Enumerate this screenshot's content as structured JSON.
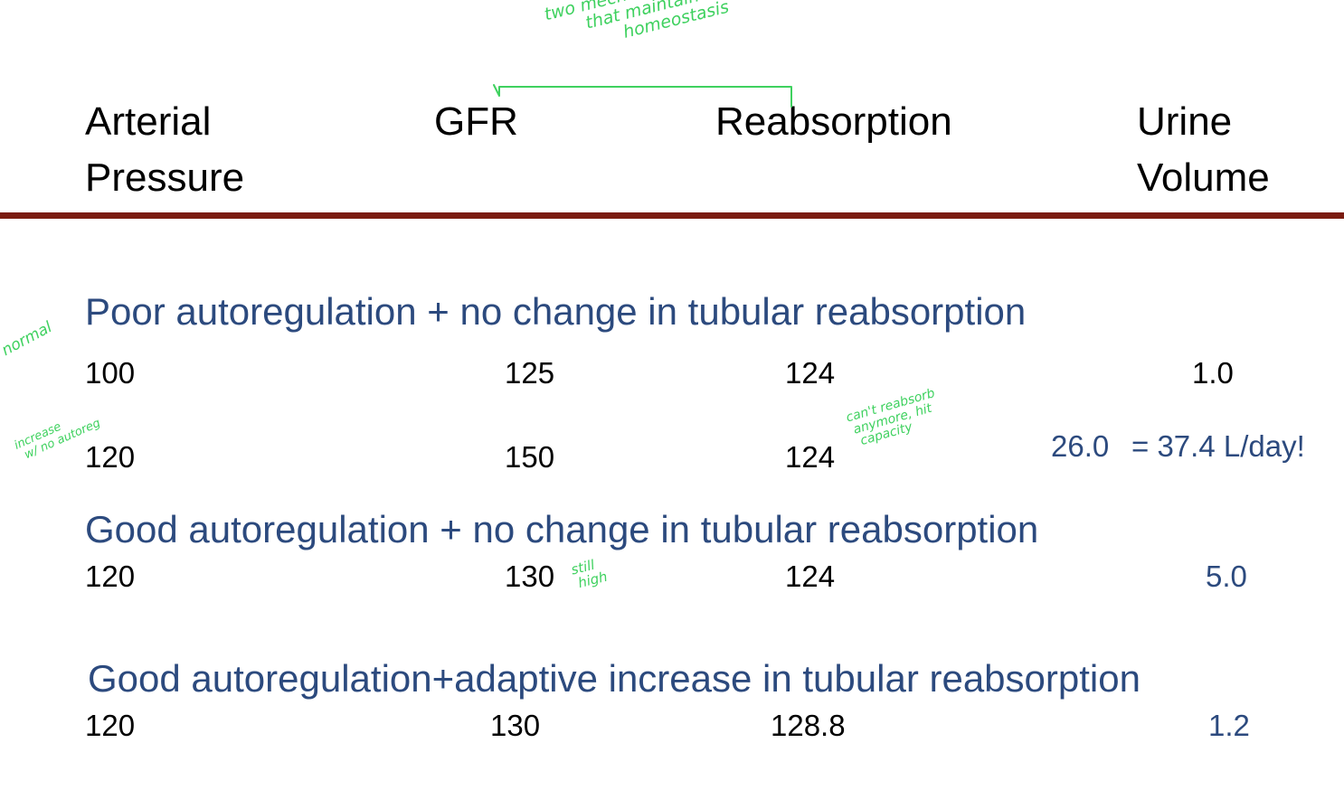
{
  "headers": {
    "arterial_pressure": [
      "Arterial",
      "Pressure"
    ],
    "gfr": "GFR",
    "reabsorption": "Reabsorption",
    "urine_volume": [
      "Urine",
      "Volume"
    ]
  },
  "annotations": {
    "header_note": [
      "two mechanisms",
      "that maintain",
      "homeostasis"
    ],
    "normal_note": "normal",
    "increase_note": [
      "increase",
      "w/ no autoreg"
    ],
    "capacity_note": [
      "can't reabsorb",
      "anymore, hit",
      "capacity"
    ],
    "still_high_note": [
      "still",
      "high"
    ]
  },
  "scenarios": [
    {
      "title": "Poor autoregulation + no change in tubular reabsorption",
      "rows": [
        {
          "arterial_pressure": "100",
          "gfr": "125",
          "reabsorption": "124",
          "urine_volume": "1.0"
        },
        {
          "arterial_pressure": "120",
          "gfr": "150",
          "reabsorption": "124",
          "urine_volume": "26.0",
          "urine_volume_extra": "= 37.4 L/day!"
        }
      ]
    },
    {
      "title": "Good autoregulation + no change in tubular reabsorption",
      "rows": [
        {
          "arterial_pressure": "120",
          "gfr": "130",
          "reabsorption": "124",
          "urine_volume": "5.0"
        }
      ]
    },
    {
      "title": "Good autoregulation+adaptive increase in tubular reabsorption",
      "rows": [
        {
          "arterial_pressure": "120",
          "gfr": "130",
          "reabsorption": "128.8",
          "urine_volume": "1.2"
        }
      ]
    }
  ],
  "colors": {
    "divider": "#7a1c10",
    "title_blue": "#2c4a7e",
    "annotation_green": "#3fd15f"
  }
}
